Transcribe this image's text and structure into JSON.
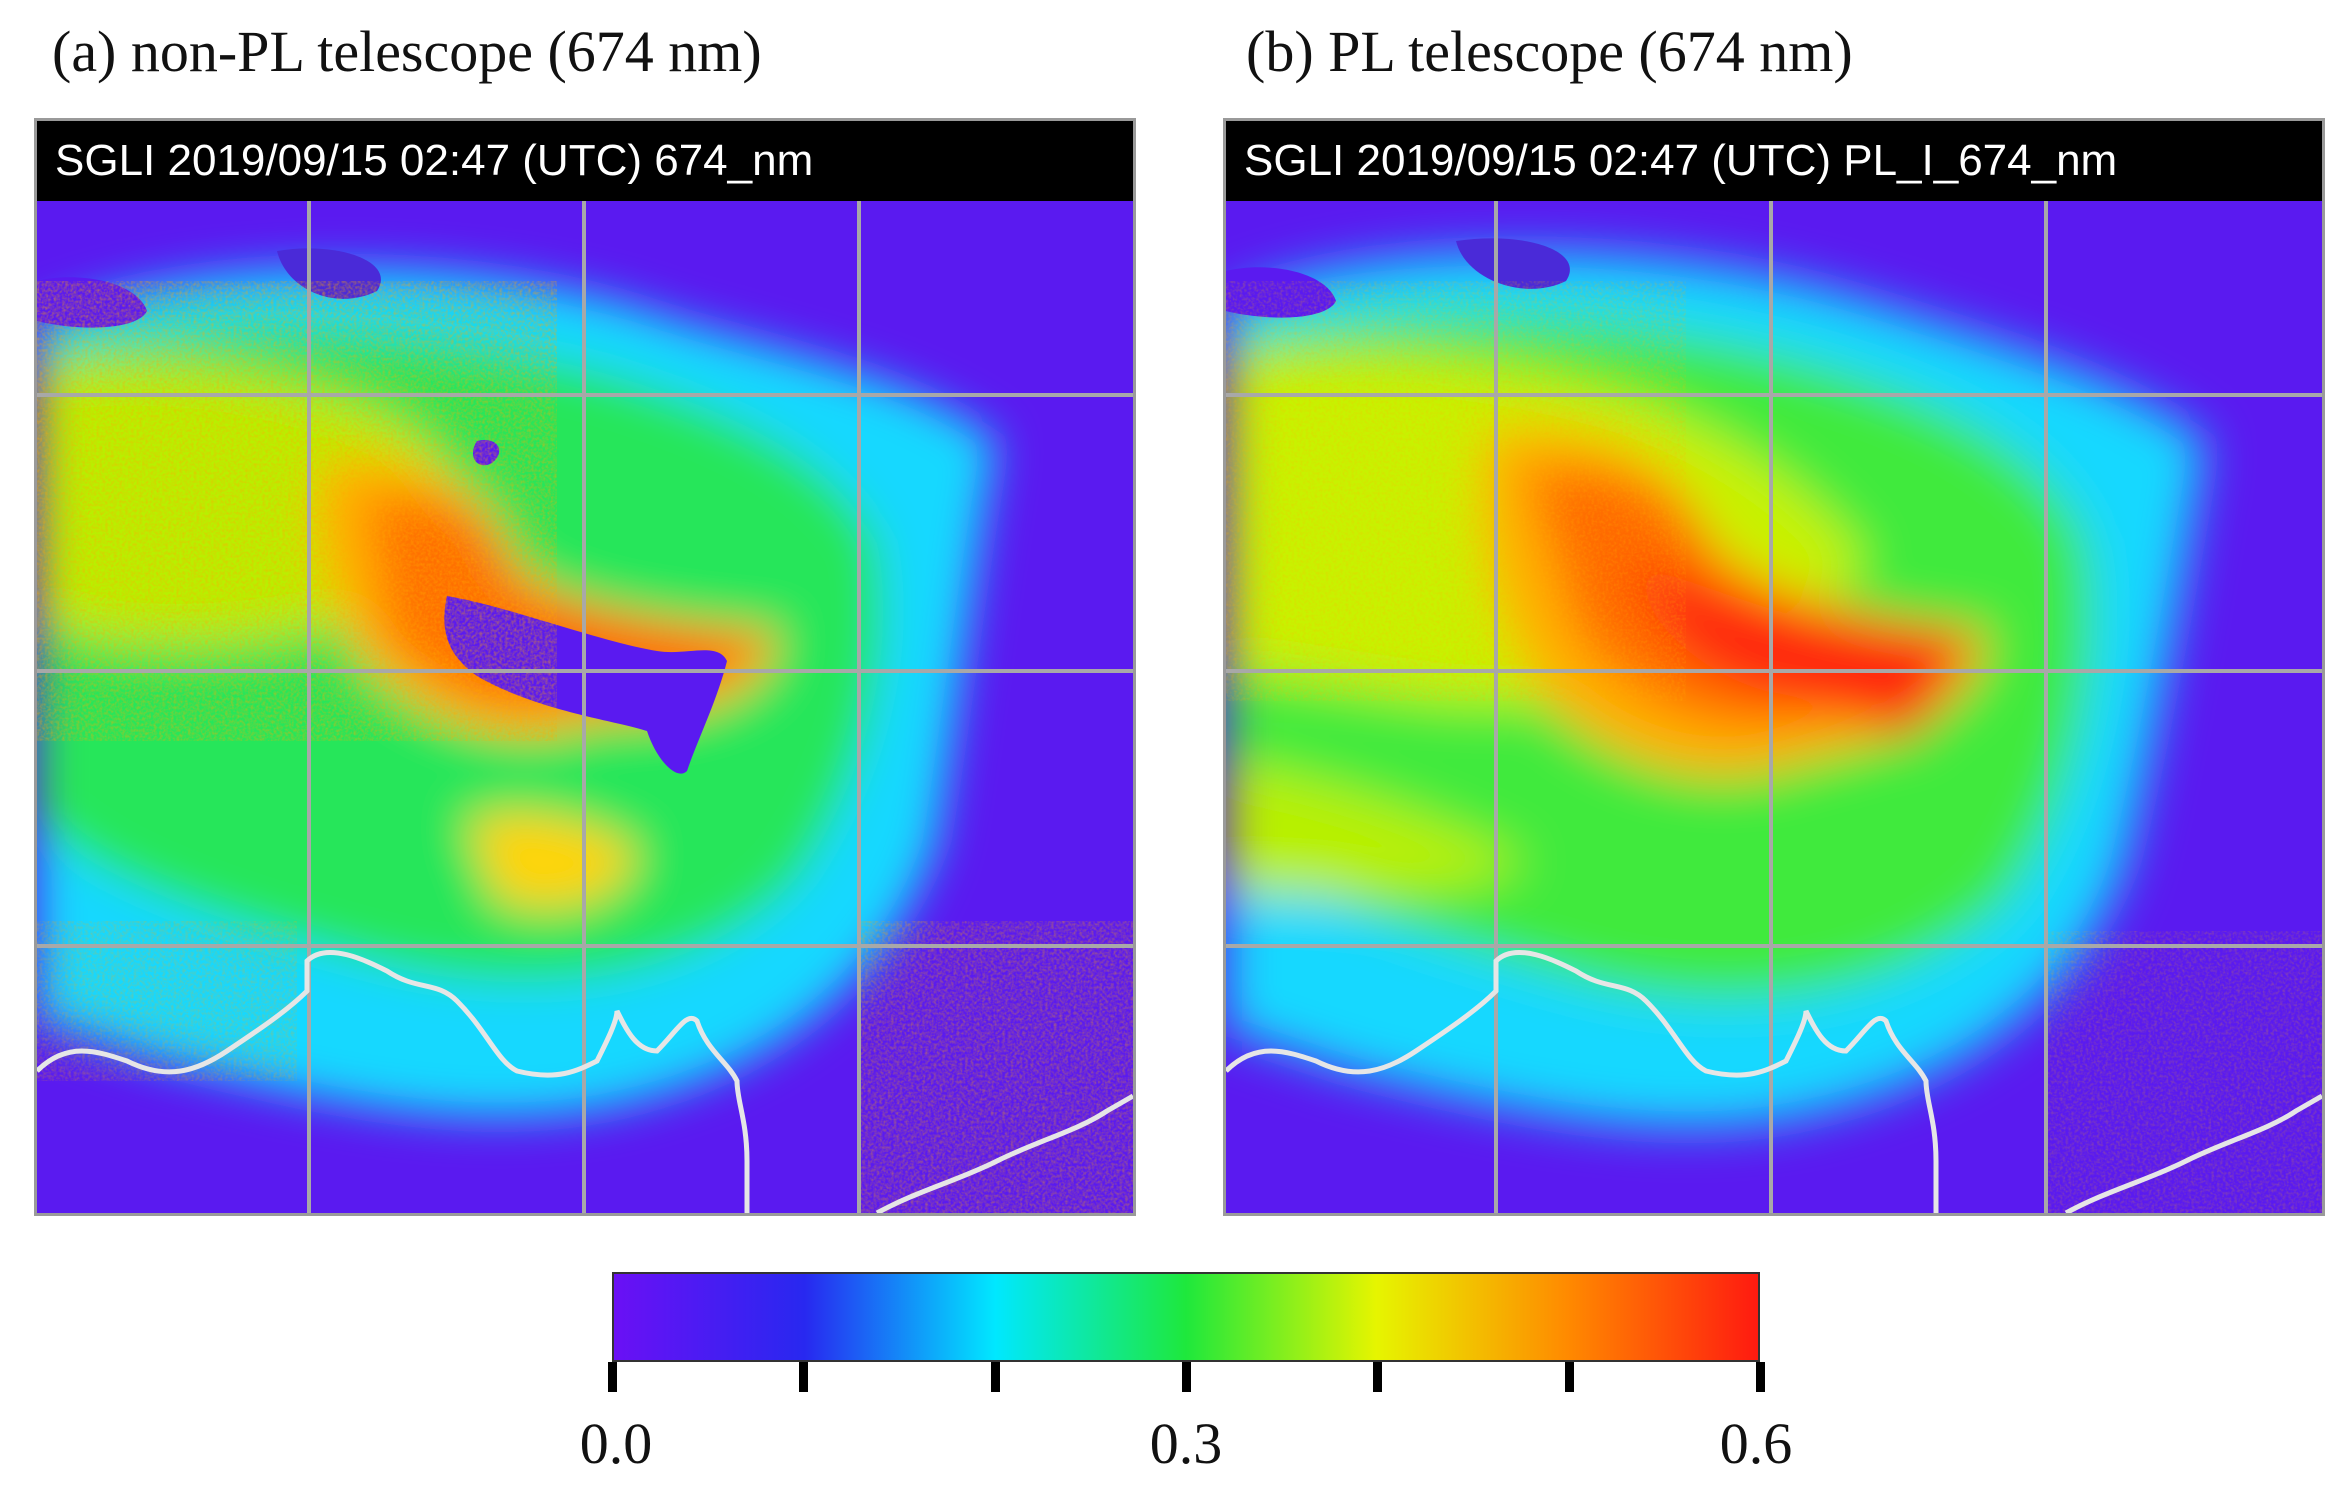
{
  "panel_a": {
    "title": "(a) non-PL telescope (674 nm)",
    "header": "SGLI  2019/09/15  02:47 (UTC)  674_nm"
  },
  "panel_b": {
    "title": "(b) PL telescope (674 nm)",
    "header": "SGLI  2019/09/15  02:47 (UTC)  PL_I_674_nm"
  },
  "colorbar": {
    "labels": [
      "0.0",
      "0.3",
      "0.6"
    ],
    "colors": [
      "#6a10f5",
      "#2828f0",
      "#00e8ff",
      "#1ee83c",
      "#e6f500",
      "#ff8a00",
      "#ff1a10"
    ]
  }
}
